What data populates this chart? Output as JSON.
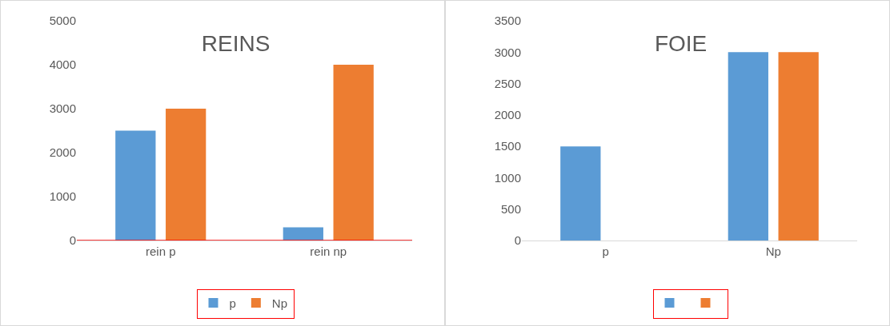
{
  "chart_data": [
    {
      "type": "bar",
      "title": "REINS",
      "categories": [
        "rein p",
        "rein np"
      ],
      "series": [
        {
          "name": "p",
          "color": "#5b9bd5",
          "values": [
            2500,
            300
          ]
        },
        {
          "name": "Np",
          "color": "#ed7d31",
          "values": [
            3000,
            4000
          ]
        }
      ],
      "ylim": [
        0,
        5000
      ],
      "yticks": [
        0,
        1000,
        2000,
        3000,
        4000,
        5000
      ],
      "grid": false,
      "legend": "bottom",
      "ref_lines": [
        {
          "axis": "y",
          "value": 0,
          "color": "#ff0000"
        }
      ]
    },
    {
      "type": "bar",
      "title": "FOIE",
      "categories": [
        "p",
        "Np"
      ],
      "series": [
        {
          "color": "#5b9bd5",
          "values": [
            1500,
            3000
          ]
        },
        {
          "color": "#ed7d31",
          "values": [
            0,
            3000
          ]
        }
      ],
      "ylim": [
        0,
        3500
      ],
      "yticks": [
        0,
        500,
        1000,
        1500,
        2000,
        2500,
        3000,
        3500
      ],
      "grid": false,
      "legend": "bottom"
    }
  ]
}
